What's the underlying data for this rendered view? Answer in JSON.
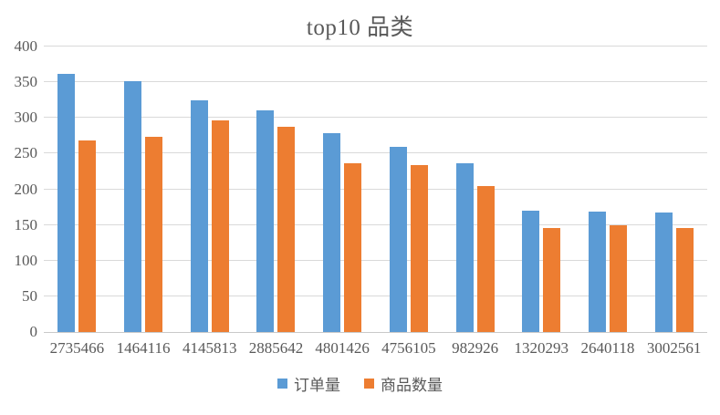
{
  "chart_data": {
    "type": "bar",
    "title": "top10 品类",
    "categories": [
      "2735466",
      "1464116",
      "4145813",
      "2885642",
      "4801426",
      "4756105",
      "982926",
      "1320293",
      "2640118",
      "3002561"
    ],
    "series": [
      {
        "name": "订单量",
        "color": "#5B9BD5",
        "values": [
          362,
          352,
          325,
          310,
          279,
          260,
          236,
          170,
          169,
          167
        ]
      },
      {
        "name": "商品数量",
        "color": "#ED7D31",
        "values": [
          269,
          274,
          296,
          288,
          236,
          234,
          204,
          146,
          149,
          146
        ]
      }
    ],
    "ylim": [
      0,
      400
    ],
    "ytick_step": 50,
    "yticks": [
      0,
      50,
      100,
      150,
      200,
      250,
      300,
      350,
      400
    ],
    "grid": true,
    "legend_position": "bottom"
  },
  "colors": {
    "series_blue": "#5B9BD5",
    "series_orange": "#ED7D31",
    "gridline": "#d9d9d9",
    "axis_line": "#c9c9c9",
    "text": "#595959",
    "background": "#ffffff"
  }
}
